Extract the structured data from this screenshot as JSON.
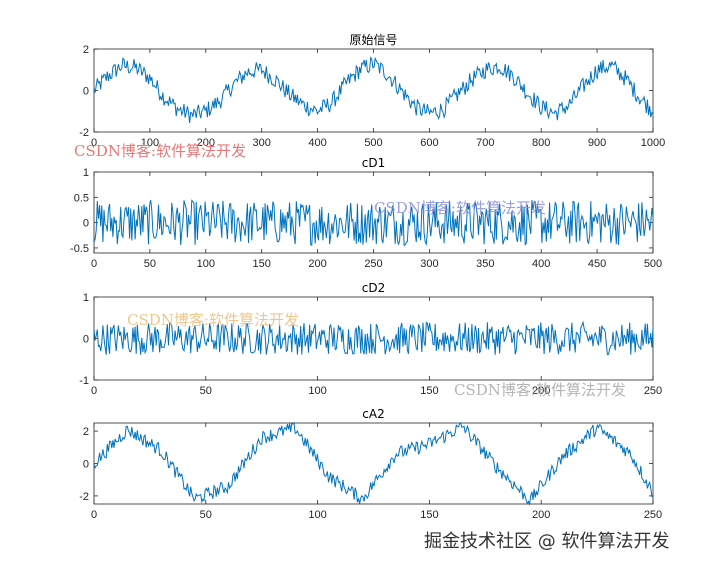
{
  "chart_data": [
    {
      "type": "line",
      "title": "原始信号",
      "xlim": [
        0,
        1000
      ],
      "ylim": [
        -2,
        2
      ],
      "xticks": [
        "0",
        "100",
        "200",
        "300",
        "400",
        "500",
        "600",
        "700",
        "800",
        "900",
        "1000"
      ],
      "yticks": [
        "-2",
        "0",
        "2"
      ],
      "grid": false,
      "series": [
        {
          "x": [
            0,
            25,
            50,
            75,
            100,
            125,
            150,
            175,
            200,
            225,
            250,
            275,
            300,
            325,
            350,
            375,
            400,
            425,
            450,
            475,
            500,
            525,
            550,
            575,
            600,
            625,
            650,
            675,
            700,
            725,
            750,
            775,
            800,
            825,
            850,
            875,
            900,
            925,
            950,
            975,
            1000
          ],
          "y": [
            0.0,
            0.7,
            1.2,
            1.1,
            0.6,
            -0.3,
            -0.9,
            -1.2,
            -1.0,
            -0.5,
            0.3,
            0.9,
            1.0,
            0.5,
            -0.2,
            -0.7,
            -1.0,
            -0.6,
            0.3,
            1.0,
            1.3,
            0.8,
            0.0,
            -0.8,
            -1.1,
            -0.9,
            -0.2,
            0.5,
            1.0,
            1.2,
            0.7,
            -0.1,
            -0.8,
            -1.1,
            -0.7,
            0.2,
            1.0,
            1.2,
            0.6,
            -0.3,
            -1.0
          ],
          "noise": 0.3
        }
      ],
      "color": "#0072bd"
    },
    {
      "type": "line",
      "title": "cD1",
      "xlim": [
        0,
        500
      ],
      "ylim": [
        -0.6,
        1
      ],
      "xticks": [
        "0",
        "50",
        "100",
        "150",
        "200",
        "250",
        "300",
        "350",
        "400",
        "450",
        "500"
      ],
      "yticks": [
        "-0.5",
        "0",
        "0.5",
        "1"
      ],
      "grid": false,
      "series": [
        {
          "x": [
            0,
            500
          ],
          "y": [
            0.0,
            0.0
          ],
          "noise": 0.32
        }
      ],
      "color": "#0072bd"
    },
    {
      "type": "line",
      "title": "cD2",
      "xlim": [
        0,
        250
      ],
      "ylim": [
        -1,
        1
      ],
      "xticks": [
        "0",
        "50",
        "100",
        "150",
        "200",
        "250"
      ],
      "yticks": [
        "-1",
        "0",
        "1"
      ],
      "grid": false,
      "series": [
        {
          "x": [
            0,
            250
          ],
          "y": [
            0.0,
            0.0
          ],
          "noise": 0.28
        }
      ],
      "color": "#0072bd"
    },
    {
      "type": "line",
      "title": "cA2",
      "xlim": [
        0,
        250
      ],
      "ylim": [
        -2.5,
        2.5
      ],
      "xticks": [
        "0",
        "50",
        "100",
        "150",
        "200",
        "250"
      ],
      "yticks": [
        "-2",
        "0",
        "2"
      ],
      "grid": false,
      "series": [
        {
          "x": [
            0,
            15,
            30,
            45,
            60,
            75,
            90,
            105,
            120,
            135,
            150,
            165,
            180,
            195,
            210,
            225,
            240,
            250
          ],
          "y": [
            0.0,
            2.1,
            0.8,
            -2.2,
            -1.4,
            1.6,
            2.2,
            -0.8,
            -2.2,
            0.6,
            1.2,
            2.3,
            -0.2,
            -2.3,
            0.5,
            2.2,
            0.6,
            -1.8
          ],
          "noise": 0.3
        }
      ],
      "color": "#0072bd"
    }
  ],
  "watermarks": {
    "red": "CSDN博客:软件算法开发",
    "blue": "CSDN博客:软件算法开发",
    "orange": "CSDN博客:软件算法开发",
    "gray": "CSDN博客:软件算法开发",
    "footer": "掘金技术社区 @ 软件算法开发"
  }
}
